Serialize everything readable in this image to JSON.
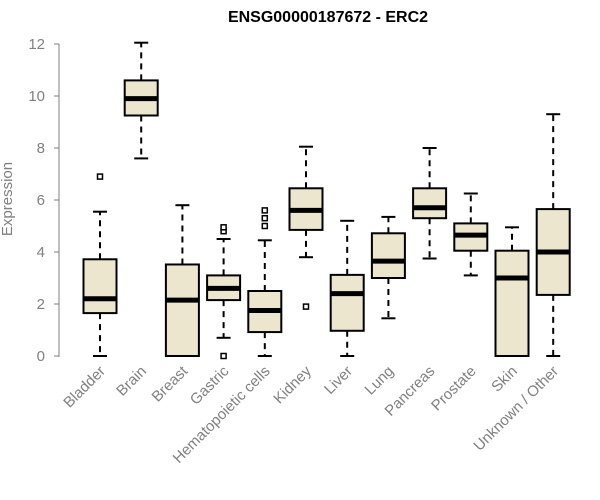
{
  "chart_data": {
    "type": "box",
    "title": "ENSG00000187672 - ERC2",
    "xlabel": "",
    "ylabel": "Expression",
    "ylim": [
      0,
      12
    ],
    "yticks": [
      0,
      2,
      4,
      6,
      8,
      10,
      12
    ],
    "grid": false,
    "box_fill": "#ede6cf",
    "box_stroke": "#000000",
    "categories": [
      "Bladder",
      "Brain",
      "Breast",
      "Gastric",
      "Hematopoietic cells",
      "Kidney",
      "Liver",
      "Lung",
      "Pancreas",
      "Prostate",
      "Skin",
      "Unknown / Other"
    ],
    "boxes": [
      {
        "min": 0.0,
        "q1": 1.65,
        "median": 2.2,
        "q3": 3.72,
        "max": 5.55,
        "outliers": [
          6.9
        ]
      },
      {
        "min": 7.6,
        "q1": 9.25,
        "median": 9.9,
        "q3": 10.6,
        "max": 12.05,
        "outliers": []
      },
      {
        "min": 0.0,
        "q1": 0.0,
        "median": 2.15,
        "q3": 3.52,
        "max": 5.8,
        "outliers": []
      },
      {
        "min": 0.7,
        "q1": 2.15,
        "median": 2.6,
        "q3": 3.1,
        "max": 4.5,
        "outliers": [
          4.8,
          4.95,
          0.0
        ]
      },
      {
        "min": 0.0,
        "q1": 0.92,
        "median": 1.75,
        "q3": 2.5,
        "max": 4.45,
        "outliers": [
          5.0,
          5.3,
          5.6
        ]
      },
      {
        "min": 3.8,
        "q1": 4.85,
        "median": 5.6,
        "q3": 6.45,
        "max": 8.05,
        "outliers": [
          1.9
        ]
      },
      {
        "min": 0.0,
        "q1": 0.97,
        "median": 2.4,
        "q3": 3.12,
        "max": 5.2,
        "outliers": []
      },
      {
        "min": 1.45,
        "q1": 3.0,
        "median": 3.65,
        "q3": 4.72,
        "max": 5.35,
        "outliers": []
      },
      {
        "min": 3.75,
        "q1": 5.3,
        "median": 5.7,
        "q3": 6.45,
        "max": 8.0,
        "outliers": []
      },
      {
        "min": 3.1,
        "q1": 4.05,
        "median": 4.65,
        "q3": 5.1,
        "max": 6.25,
        "outliers": []
      },
      {
        "min": 0.0,
        "q1": 0.0,
        "median": 3.0,
        "q3": 4.05,
        "max": 4.95,
        "outliers": []
      },
      {
        "min": 0.0,
        "q1": 2.35,
        "median": 4.0,
        "q3": 5.65,
        "max": 9.3,
        "outliers": []
      }
    ]
  }
}
